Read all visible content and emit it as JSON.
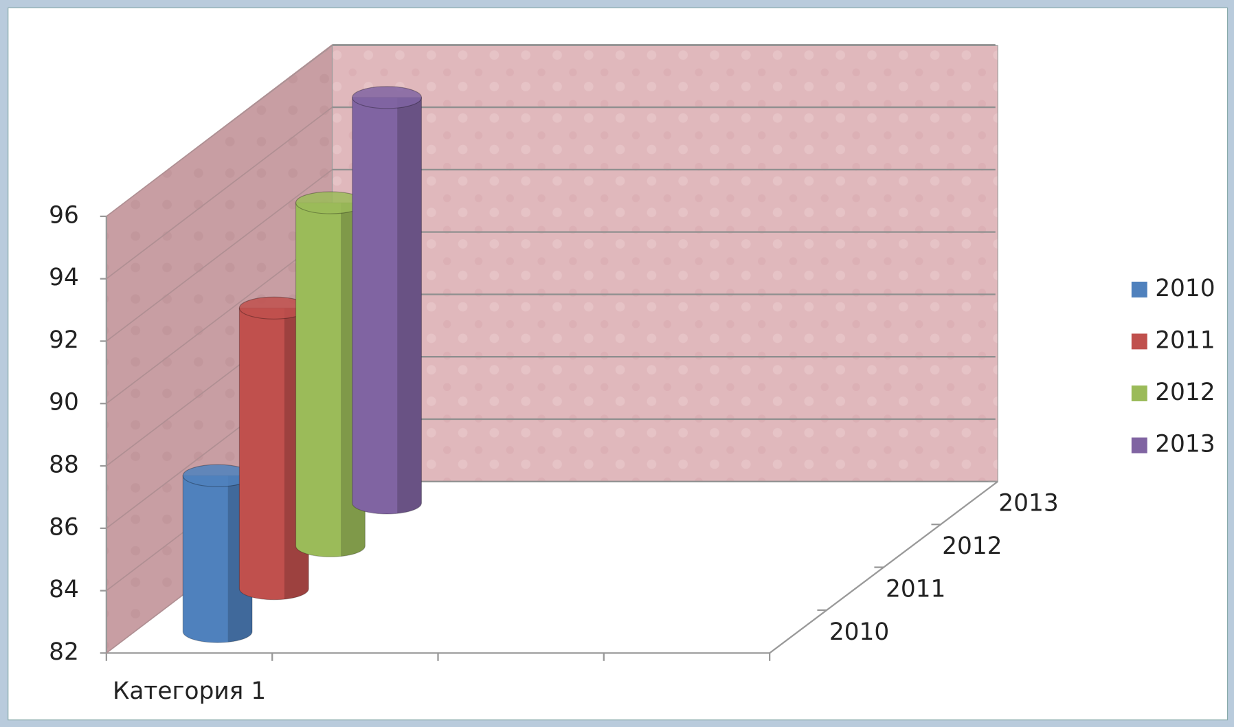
{
  "chart_data": {
    "type": "bar",
    "categories": [
      "Категория 1"
    ],
    "series": [
      {
        "name": "2010",
        "color": "#4f81bd",
        "values": [
          87
        ]
      },
      {
        "name": "2011",
        "color": "#c0504d",
        "values": [
          91
        ]
      },
      {
        "name": "2012",
        "color": "#9bbb59",
        "values": [
          93
        ]
      },
      {
        "name": "2013",
        "color": "#8064a2",
        "values": [
          95
        ]
      }
    ],
    "ylim": [
      82,
      96
    ],
    "yticks": [
      82,
      84,
      86,
      88,
      90,
      92,
      94,
      96
    ],
    "grid": true,
    "legend": "right"
  }
}
